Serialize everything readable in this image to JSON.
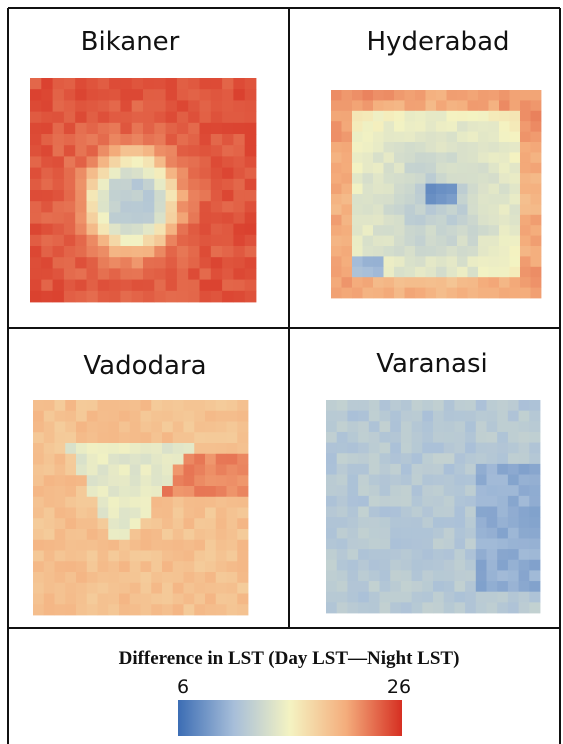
{
  "panels": [
    {
      "title": "Bikaner"
    },
    {
      "title": "Hyderabad"
    },
    {
      "title": "Vadodara"
    },
    {
      "title": "Varanasi"
    }
  ],
  "legend": {
    "title": "Difference in LST (Day LST—Night LST)",
    "min": 6,
    "max": 26,
    "colormap": [
      "#3c6db4",
      "#a7bed9",
      "#f4f3c2",
      "#f4ad7c",
      "#d62f22"
    ]
  }
}
